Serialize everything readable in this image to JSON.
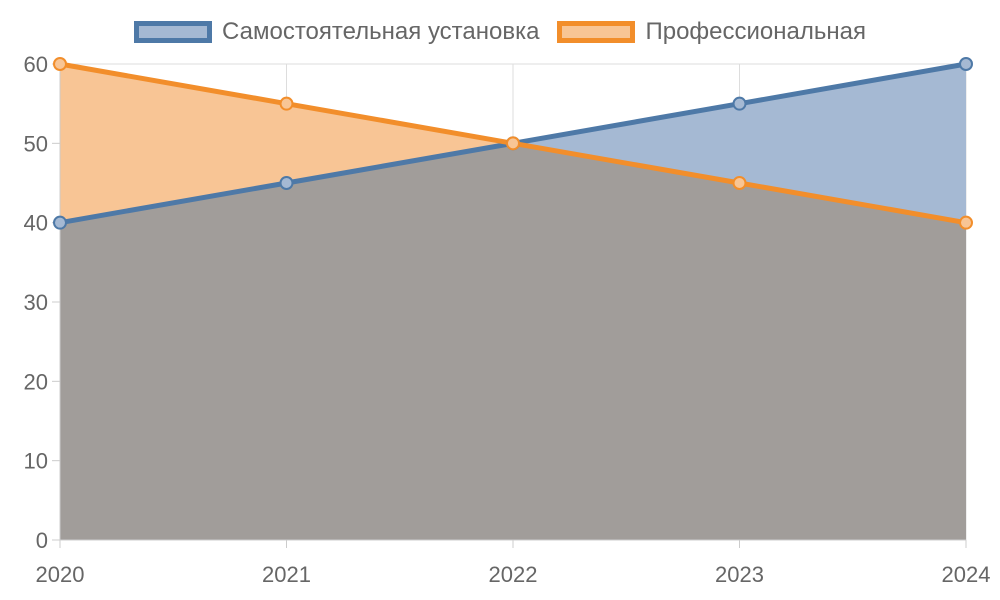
{
  "chart_data": {
    "type": "area",
    "categories": [
      "2020",
      "2021",
      "2022",
      "2023",
      "2024"
    ],
    "series": [
      {
        "name": "Самостоятельная установка",
        "values": [
          40,
          45,
          50,
          55,
          60
        ],
        "line_color": "#4e79a7",
        "fill_color": "#a5b9d3"
      },
      {
        "name": "Профессиональная",
        "values": [
          60,
          55,
          50,
          45,
          40
        ],
        "line_color": "#f28e2b",
        "fill_color": "#f8c595"
      }
    ],
    "overlap_color": "#a19d9a",
    "y_ticks": [
      "0",
      "10",
      "20",
      "30",
      "40",
      "50",
      "60"
    ],
    "ylim": [
      0,
      60
    ],
    "grid": true,
    "legend_position": "top-center",
    "title": "",
    "xlabel": "",
    "ylabel": ""
  }
}
